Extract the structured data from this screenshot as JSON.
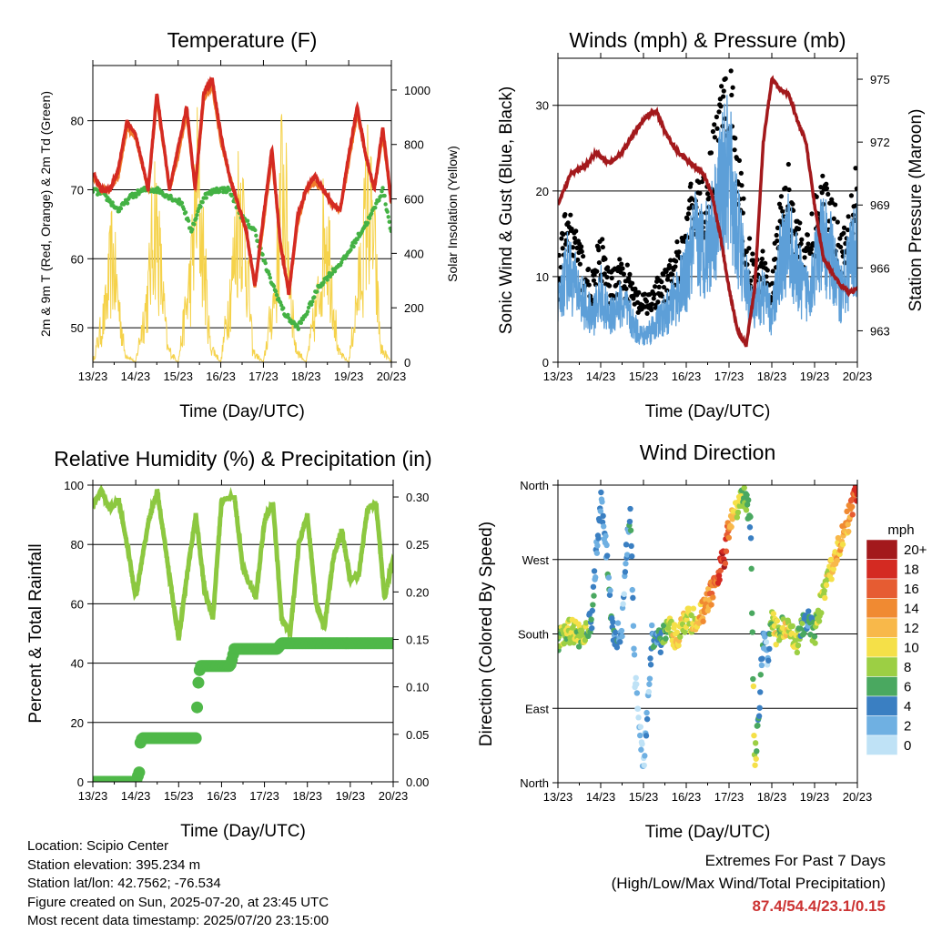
{
  "x_tick_labels": [
    "13/23",
    "14/23",
    "15/23",
    "16/23",
    "17/23",
    "18/23",
    "19/23",
    "20/23"
  ],
  "x_axis_title": "Time (Day/UTC)",
  "info": {
    "location": "Location: Scipio Center",
    "elevation": "Station elevation: 395.234 m",
    "latlon": "Station lat/lon: 42.7562; -76.534",
    "created": "Figure created on Sun, 2025-07-20, at 23:45 UTC",
    "recent": "Most recent data timestamp: 2025/07/20 23:15:00"
  },
  "extremes": {
    "line1": "Extremes For Past 7 Days",
    "line2": "(High/Low/Max Wind/Total Precipitation)",
    "values": "87.4/54.4/23.1/0.15",
    "value_color": "#cc3333"
  },
  "colors": {
    "temp_2m": "#d42a22",
    "temp_9m": "#f07c2c",
    "dewpoint": "#44b244",
    "insolation": "#f5d24a",
    "wind": "#5d9fd8",
    "gust": "#000000",
    "pressure": "#a3191c",
    "humidity": "#8cc840",
    "precip": "#4fb848"
  },
  "chart_data": [
    {
      "id": "temperature",
      "type": "line",
      "title": "Temperature (F)",
      "xlabel": "Time (Day/UTC)",
      "ylabel": "2m & 9m T (Red, Orange) & 2m Td (Green)",
      "y2label": "Solar Insolation (Yellow)",
      "ylim": [
        45,
        88
      ],
      "y2lim": [
        0,
        1090
      ],
      "yticks": [
        50,
        60,
        70,
        80
      ],
      "y2ticks": [
        0,
        200,
        400,
        600,
        800,
        1000
      ],
      "x_unit": "days since 13/23 UTC",
      "xlim": [
        0,
        7
      ],
      "series": [
        {
          "name": "2m T",
          "x": [
            0,
            0.2,
            0.4,
            0.6,
            0.8,
            1.0,
            1.3,
            1.5,
            1.8,
            2.0,
            2.2,
            2.4,
            2.6,
            2.8,
            3.0,
            3.2,
            3.4,
            3.6,
            3.8,
            4.0,
            4.2,
            4.4,
            4.6,
            4.8,
            5.0,
            5.2,
            5.4,
            5.6,
            5.8,
            6.0,
            6.2,
            6.4,
            6.6,
            6.8,
            7.0
          ],
          "values": [
            72.5,
            70,
            70,
            73,
            80,
            78,
            70,
            84,
            70,
            76,
            82,
            70,
            84,
            86,
            78,
            72,
            68,
            64,
            56,
            66,
            76,
            62,
            55,
            66,
            70,
            72,
            70,
            68,
            67,
            75,
            82,
            75,
            70,
            79,
            68
          ]
        },
        {
          "name": "9m T",
          "x": [
            0,
            0.2,
            0.4,
            0.6,
            0.8,
            1.0,
            1.3,
            1.5,
            1.8,
            2.0,
            2.2,
            2.4,
            2.6,
            2.8,
            3.0,
            3.2,
            3.4,
            3.6,
            3.8,
            4.0,
            4.2,
            4.4,
            4.6,
            4.8,
            5.0,
            5.2,
            5.4,
            5.6,
            5.8,
            6.0,
            6.2,
            6.4,
            6.6,
            6.8,
            7.0
          ],
          "values": [
            72,
            70,
            70,
            72,
            79,
            77.5,
            70,
            83,
            70,
            75,
            81,
            70,
            83,
            85,
            77,
            72,
            68,
            64,
            56,
            65,
            75,
            62,
            55,
            65,
            70,
            71,
            70,
            68,
            67,
            74,
            81,
            75,
            70,
            78,
            68
          ]
        },
        {
          "name": "2m Td",
          "x": [
            0,
            0.3,
            0.6,
            0.9,
            1.2,
            1.5,
            1.8,
            2.1,
            2.3,
            2.6,
            2.9,
            3.2,
            3.5,
            3.8,
            4.1,
            4.3,
            4.5,
            4.8,
            5.0,
            5.3,
            5.6,
            5.9,
            6.2,
            6.5,
            6.8,
            7.0
          ],
          "values": [
            70,
            69,
            67,
            69,
            70,
            70,
            69,
            68,
            64,
            69,
            70,
            70,
            66,
            64,
            58,
            55,
            52,
            50,
            52,
            56,
            58,
            60,
            63,
            66,
            70,
            64
          ]
        },
        {
          "name": "Solar Insolation",
          "axis": "y2",
          "x": [
            0,
            0.3,
            0.45,
            0.6,
            0.75,
            1.0,
            1.3,
            1.45,
            1.6,
            1.75,
            2.0,
            2.3,
            2.45,
            2.6,
            2.75,
            3.0,
            3.3,
            3.45,
            3.6,
            3.75,
            4.0,
            4.3,
            4.45,
            4.6,
            4.75,
            5.0,
            5.3,
            5.45,
            5.6,
            5.75,
            6.0,
            6.3,
            6.45,
            6.6,
            6.75,
            7.0
          ],
          "values": [
            0,
            300,
            620,
            350,
            50,
            0,
            400,
            880,
            500,
            80,
            0,
            500,
            1000,
            600,
            100,
            0,
            550,
            1000,
            620,
            60,
            0,
            450,
            1100,
            600,
            80,
            0,
            380,
            850,
            500,
            60,
            0,
            550,
            950,
            650,
            80,
            0
          ]
        }
      ]
    },
    {
      "id": "winds",
      "type": "scatter",
      "title": "Winds (mph) & Pressure (mb)",
      "xlabel": "Time (Day/UTC)",
      "ylabel": "Sonic Wind & Gust (Blue, Black)",
      "y2label": "Station Pressure (Maroon)",
      "ylim": [
        0,
        35.5
      ],
      "y2lim": [
        961.5,
        976
      ],
      "yticks": [
        0,
        10,
        20,
        30
      ],
      "y2ticks": [
        963,
        966,
        969,
        972,
        975
      ],
      "x_unit": "days since 13/23 UTC",
      "xlim": [
        0,
        7
      ],
      "series": [
        {
          "name": "Sonic Wind",
          "x": [
            0,
            0.2,
            0.4,
            0.6,
            0.8,
            1.0,
            1.2,
            1.4,
            1.6,
            1.8,
            2.0,
            2.2,
            2.4,
            2.6,
            2.8,
            3.0,
            3.2,
            3.4,
            3.6,
            3.8,
            4.0,
            4.2,
            4.4,
            4.6,
            4.8,
            5.0,
            5.2,
            5.4,
            5.6,
            5.8,
            6.0,
            6.2,
            6.4,
            6.6,
            6.8,
            7.0
          ],
          "values": [
            6,
            11,
            9,
            7,
            5,
            8,
            5,
            7,
            6,
            4,
            3,
            4,
            5,
            6,
            8,
            10,
            14,
            13,
            15,
            20,
            22,
            15,
            9,
            6,
            8,
            5,
            12,
            14,
            10,
            8,
            11,
            14,
            12,
            8,
            11,
            14
          ]
        },
        {
          "name": "Gust",
          "x": [
            0,
            0.2,
            0.4,
            0.6,
            0.8,
            1.0,
            1.2,
            1.4,
            1.6,
            1.8,
            2.0,
            2.2,
            2.4,
            2.6,
            2.8,
            3.0,
            3.2,
            3.4,
            3.6,
            3.8,
            4.0,
            4.2,
            4.4,
            4.6,
            4.8,
            5.0,
            5.2,
            5.4,
            5.6,
            5.8,
            6.0,
            6.2,
            6.4,
            6.6,
            6.8,
            7.0
          ],
          "values": [
            9,
            15,
            13,
            10,
            8,
            12,
            8,
            10,
            9,
            7,
            6,
            7,
            8,
            9,
            11,
            14,
            18,
            17,
            20,
            26,
            30,
            20,
            13,
            9,
            11,
            8,
            16,
            18,
            14,
            11,
            15,
            18,
            16,
            12,
            15,
            20
          ]
        },
        {
          "name": "Station Pressure",
          "axis": "y2",
          "x": [
            0,
            0.3,
            0.6,
            0.9,
            1.2,
            1.5,
            1.8,
            2.1,
            2.3,
            2.5,
            2.8,
            3.1,
            3.4,
            3.6,
            3.8,
            4.0,
            4.2,
            4.4,
            4.6,
            4.8,
            5.0,
            5.2,
            5.4,
            5.6,
            5.8,
            6.0,
            6.2,
            6.4,
            6.6,
            6.8,
            7.0
          ],
          "values": [
            969,
            970.5,
            970.8,
            971.5,
            971,
            971.5,
            972.5,
            973.3,
            973.5,
            972.5,
            971.5,
            971,
            970.5,
            969.5,
            967.5,
            965,
            963,
            962.3,
            965,
            972,
            975,
            974.5,
            974.3,
            973,
            972,
            969,
            966.5,
            965.8,
            965.2,
            964.8,
            965
          ]
        }
      ]
    },
    {
      "id": "humidity",
      "type": "line",
      "title": "Relative Humidity (%) & Precipitation (in)",
      "xlabel": "Time (Day/UTC)",
      "ylabel": "Percent & Total Rainfall",
      "ylim": [
        0,
        100
      ],
      "y2lim": [
        0,
        0.3125
      ],
      "yticks": [
        0,
        20,
        40,
        60,
        80,
        100
      ],
      "y2ticks": [
        0.0,
        0.05,
        0.1,
        0.15,
        0.2,
        0.25,
        0.3
      ],
      "x_unit": "days since 13/23 UTC",
      "xlim": [
        0,
        7
      ],
      "series": [
        {
          "name": "Relative Humidity",
          "x": [
            0,
            0.2,
            0.4,
            0.6,
            0.8,
            1.0,
            1.3,
            1.5,
            1.8,
            2.0,
            2.2,
            2.4,
            2.6,
            2.8,
            3.0,
            3.3,
            3.5,
            3.8,
            4.0,
            4.2,
            4.4,
            4.6,
            4.8,
            5.0,
            5.2,
            5.4,
            5.6,
            5.8,
            6.0,
            6.2,
            6.4,
            6.6,
            6.8,
            7.0
          ],
          "values": [
            93,
            98,
            92,
            95,
            80,
            62,
            88,
            98,
            68,
            48,
            70,
            90,
            65,
            55,
            95,
            96,
            72,
            62,
            88,
            94,
            55,
            50,
            80,
            90,
            60,
            52,
            75,
            85,
            68,
            70,
            92,
            94,
            62,
            75
          ]
        },
        {
          "name": "Total Precipitation",
          "axis": "y2",
          "x": [
            0,
            1.0,
            1.08,
            1.1,
            1.15,
            2.4,
            2.45,
            2.5,
            3.2,
            3.25,
            3.3,
            4.3,
            4.4,
            7.0
          ],
          "values": [
            0,
            0,
            0.01,
            0.04,
            0.046,
            0.046,
            0.1,
            0.122,
            0.122,
            0.13,
            0.14,
            0.14,
            0.146,
            0.146
          ]
        }
      ]
    },
    {
      "id": "wind_direction",
      "type": "scatter",
      "title": "Wind Direction",
      "xlabel": "Time (Day/UTC)",
      "ylabel": "Direction (Colored By Speed)",
      "ylim": [
        0,
        360
      ],
      "yticks": [
        0,
        90,
        180,
        270,
        360
      ],
      "ytick_labels": [
        "North",
        "East",
        "South",
        "West",
        "North"
      ],
      "x_unit": "days since 13/23 UTC",
      "xlim": [
        0,
        7
      ],
      "series": [
        {
          "name": "Direction",
          "x": [
            0,
            0.3,
            0.6,
            0.8,
            0.9,
            1.0,
            1.1,
            1.3,
            1.5,
            1.6,
            1.7,
            1.8,
            1.9,
            2.0,
            2.2,
            2.4,
            2.6,
            2.8,
            3.0,
            3.2,
            3.4,
            3.6,
            3.8,
            3.9,
            4.0,
            4.1,
            4.2,
            4.3,
            4.4,
            4.5,
            4.6,
            4.7,
            4.8,
            4.9,
            5.0,
            5.1,
            5.2,
            5.3,
            5.5,
            5.6,
            5.8,
            6.0,
            6.2,
            6.4,
            6.6,
            6.8,
            6.9,
            7.0
          ],
          "values": [
            170,
            185,
            175,
            200,
            280,
            340,
            300,
            170,
            190,
            280,
            320,
            130,
            70,
            20,
            180,
            170,
            185,
            175,
            200,
            195,
            210,
            230,
            260,
            275,
            310,
            320,
            335,
            345,
            340,
            320,
            20,
            90,
            180,
            150,
            200,
            180,
            190,
            185,
            180,
            170,
            200,
            180,
            230,
            260,
            290,
            320,
            340,
            350
          ],
          "speeds": [
            8,
            10,
            9,
            6,
            4,
            5,
            4,
            6,
            3,
            4,
            5,
            2,
            2,
            2,
            4,
            6,
            10,
            12,
            10,
            11,
            14,
            16,
            18,
            20,
            14,
            12,
            10,
            8,
            9,
            6,
            10,
            6,
            4,
            2,
            10,
            12,
            8,
            11,
            10,
            9,
            5,
            8,
            10,
            12,
            13,
            14,
            16,
            18
          ]
        }
      ],
      "legend": {
        "title": "mph",
        "labels": [
          "20+",
          "18",
          "16",
          "14",
          "12",
          "10",
          "8",
          "6",
          "4",
          "2",
          "0"
        ],
        "colors": [
          "#a3191c",
          "#d42a22",
          "#e65c32",
          "#f08a32",
          "#f8b84a",
          "#f5e048",
          "#9ccf44",
          "#4aa860",
          "#3a7fc2",
          "#6fb0e2",
          "#bfe2f6"
        ]
      }
    }
  ]
}
